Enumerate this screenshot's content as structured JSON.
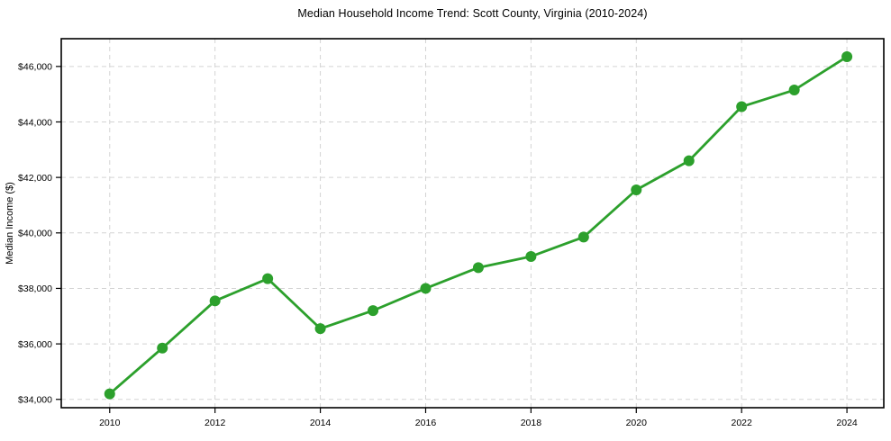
{
  "chart_data": {
    "type": "line",
    "title": "Median Household Income Trend: Scott County, Virginia (2010-2024)",
    "xlabel": "",
    "ylabel": "Median Income ($)",
    "series": [
      {
        "name": "Median Household Income",
        "x": [
          2010,
          2011,
          2012,
          2013,
          2014,
          2015,
          2016,
          2017,
          2018,
          2019,
          2020,
          2021,
          2022,
          2023,
          2024
        ],
        "values": [
          34200,
          35850,
          37550,
          38350,
          36550,
          37200,
          38000,
          38750,
          39150,
          39850,
          41550,
          42600,
          44550,
          45150,
          46350
        ]
      }
    ],
    "x_ticks": {
      "values": [
        2010,
        2012,
        2014,
        2016,
        2018,
        2020,
        2022,
        2024
      ],
      "labels": [
        "2010",
        "2012",
        "2014",
        "2016",
        "2018",
        "2020",
        "2022",
        "2024"
      ]
    },
    "y_ticks": {
      "values": [
        34000,
        36000,
        38000,
        40000,
        42000,
        44000,
        46000
      ],
      "labels": [
        "$34,000",
        "$36,000",
        "$38,000",
        "$40,000",
        "$42,000",
        "$44,000",
        "$46,000"
      ]
    },
    "xlim": [
      2009.08,
      2024.7
    ],
    "ylim": [
      33700,
      47000
    ],
    "grid": true,
    "grid_style": "dashed",
    "legend": "none",
    "marker": "circle",
    "colors": {
      "line": "#2ca02c",
      "marker": "#2ca02c",
      "grid": "#d3d3d3",
      "spine": "#000000",
      "text": "#000000",
      "background": "#ffffff"
    }
  }
}
